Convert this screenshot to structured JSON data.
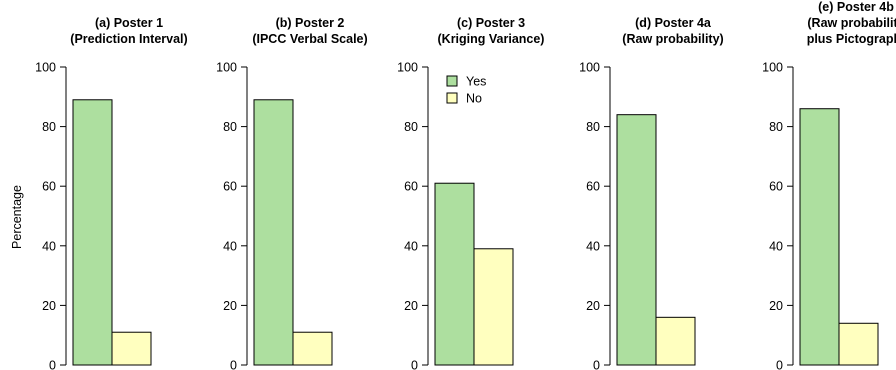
{
  "chart_data": {
    "type": "bar",
    "ylabel": "Percentage",
    "ylim": [
      0,
      100
    ],
    "yticks": [
      0,
      20,
      40,
      60,
      80,
      100
    ],
    "legend": {
      "placement": "top-left of panel (c)",
      "entries": [
        {
          "label": "Yes",
          "color": "#addf9f"
        },
        {
          "label": "No",
          "color": "#ffffbf"
        }
      ]
    },
    "series_names": [
      "Yes",
      "No"
    ],
    "panels": [
      {
        "title": [
          "(a) Poster 1",
          "(Prediction Interval)"
        ],
        "values": [
          89,
          11
        ]
      },
      {
        "title": [
          "(b) Poster 2",
          "(IPCC Verbal Scale)"
        ],
        "values": [
          89,
          11
        ]
      },
      {
        "title": [
          "(c) Poster 3",
          "(Kriging Variance)"
        ],
        "values": [
          61,
          39
        ]
      },
      {
        "title": [
          "(d) Poster 4a",
          "(Raw probability)"
        ],
        "values": [
          84,
          16
        ]
      },
      {
        "title": [
          "(e) Poster 4b",
          "(Raw probability",
          "plus Pictograph)"
        ],
        "values": [
          86,
          14
        ]
      }
    ]
  }
}
